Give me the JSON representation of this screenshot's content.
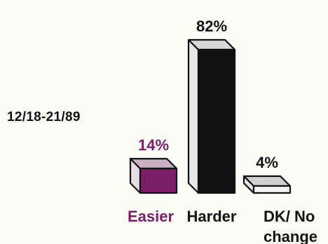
{
  "date_range": "12/18-21/89",
  "chart_data": {
    "type": "bar",
    "categories": [
      "Easier",
      "Harder",
      "DK/ No change"
    ],
    "values": [
      14,
      82,
      4
    ],
    "data_labels": [
      "14%",
      "82%",
      "4%"
    ],
    "category_lines": [
      [
        "Easier"
      ],
      [
        "Harder"
      ],
      [
        "DK/ No",
        "change"
      ]
    ],
    "title": "",
    "xlabel": "",
    "ylabel": "",
    "ylim": [
      0,
      100
    ],
    "grid": false,
    "style": "3d-bar"
  },
  "colors": {
    "easier_front": "#7b1e6a",
    "easier_top": "#c9aec3",
    "easier_side": "#e7dbe3",
    "easier_text": "#7b1e6a",
    "harder_front": "#111111",
    "harder_top": "#d8d8d8",
    "harder_side": "#e6e6e6",
    "dk_front": "#f3f3f3",
    "dk_top": "#d0d0d0",
    "dk_side": "#e8e8e8",
    "text": "#111111"
  }
}
